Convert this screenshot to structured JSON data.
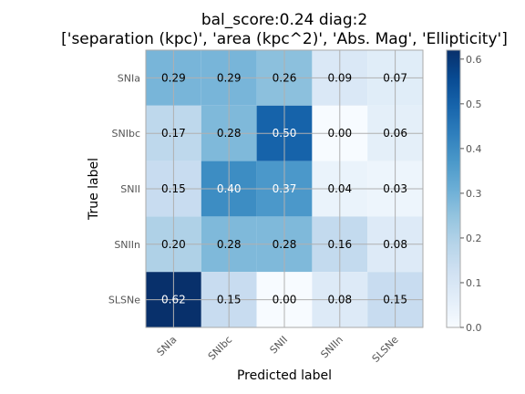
{
  "chart_data": {
    "type": "heatmap",
    "title": "bal_score:0.24 diag:2",
    "subtitle": "['separation (kpc)', 'area (kpc^2)', 'Abs. Mag', 'Ellipticity']",
    "xlabel": "Predicted label",
    "ylabel": "True label",
    "x_categories": [
      "SNIa",
      "SNIbc",
      "SNII",
      "SNIIn",
      "SLSNe"
    ],
    "y_categories": [
      "SNIa",
      "SNIbc",
      "SNII",
      "SNIIn",
      "SLSNe"
    ],
    "values": [
      [
        0.29,
        0.29,
        0.26,
        0.09,
        0.07
      ],
      [
        0.17,
        0.28,
        0.5,
        0.0,
        0.06
      ],
      [
        0.15,
        0.4,
        0.37,
        0.04,
        0.03
      ],
      [
        0.2,
        0.28,
        0.28,
        0.16,
        0.08
      ],
      [
        0.62,
        0.15,
        0.0,
        0.08,
        0.15
      ]
    ],
    "value_labels": [
      [
        "0.29",
        "0.29",
        "0.26",
        "0.09",
        "0.07"
      ],
      [
        "0.17",
        "0.28",
        "0.50",
        "0.00",
        "0.06"
      ],
      [
        "0.15",
        "0.40",
        "0.37",
        "0.04",
        "0.03"
      ],
      [
        "0.20",
        "0.28",
        "0.28",
        "0.16",
        "0.08"
      ],
      [
        "0.62",
        "0.15",
        "0.00",
        "0.08",
        "0.15"
      ]
    ],
    "colorbar": {
      "range": [
        0,
        0.62
      ],
      "ticks": [
        "0.0",
        "0.1",
        "0.2",
        "0.3",
        "0.4",
        "0.5",
        "0.6"
      ],
      "colormap": "Blues"
    },
    "grid": true
  }
}
